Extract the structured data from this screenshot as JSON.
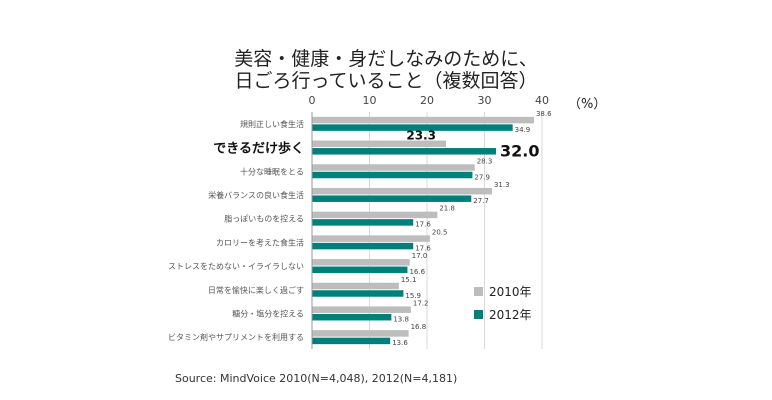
{
  "chart_data": {
    "type": "bar",
    "orientation": "horizontal",
    "title_lines": [
      "美容・健康・身だしなみのために、",
      "日ごろ行っていること（複数回答）"
    ],
    "unit_label": "（%）",
    "x_ticks": [
      0,
      10,
      20,
      30,
      40
    ],
    "xlim": [
      0,
      40
    ],
    "grid": true,
    "legend_position": "right",
    "categories": [
      "規則正しい食生活",
      "できるだけ歩く",
      "十分な睡眠をとる",
      "栄養バランスの良い食生活",
      "脂っぽいものを控える",
      "カロリーを考えた食生活",
      "ストレスをためない・イライラしない",
      "日常を愉快に楽しく過ごす",
      "糖分・塩分を控える",
      "ビタミン剤やサプリメントを利用する"
    ],
    "highlight_index": 1,
    "series": [
      {
        "name": "2010年",
        "color": "#bdbdbd",
        "values": [
          38.6,
          23.3,
          28.3,
          31.3,
          21.8,
          20.5,
          17.0,
          15.1,
          17.2,
          16.8
        ],
        "labels": [
          "38.6",
          "23.3",
          "28.3",
          "31.3",
          "21.8",
          "20.5",
          "17.0",
          "15.1",
          "17.2",
          "16.8"
        ]
      },
      {
        "name": "2012年",
        "color": "#00807a",
        "values": [
          34.9,
          32.0,
          27.9,
          27.7,
          17.6,
          17.6,
          16.6,
          15.9,
          13.8,
          13.6
        ],
        "labels": [
          "34.9",
          "32.0",
          "27.9",
          "27.7",
          "17.6",
          "17.6",
          "16.6",
          "15.9",
          "13.8",
          "13.6"
        ]
      }
    ],
    "source": "Source: MindVoice 2010(N=4,048), 2012(N=4,181)"
  }
}
